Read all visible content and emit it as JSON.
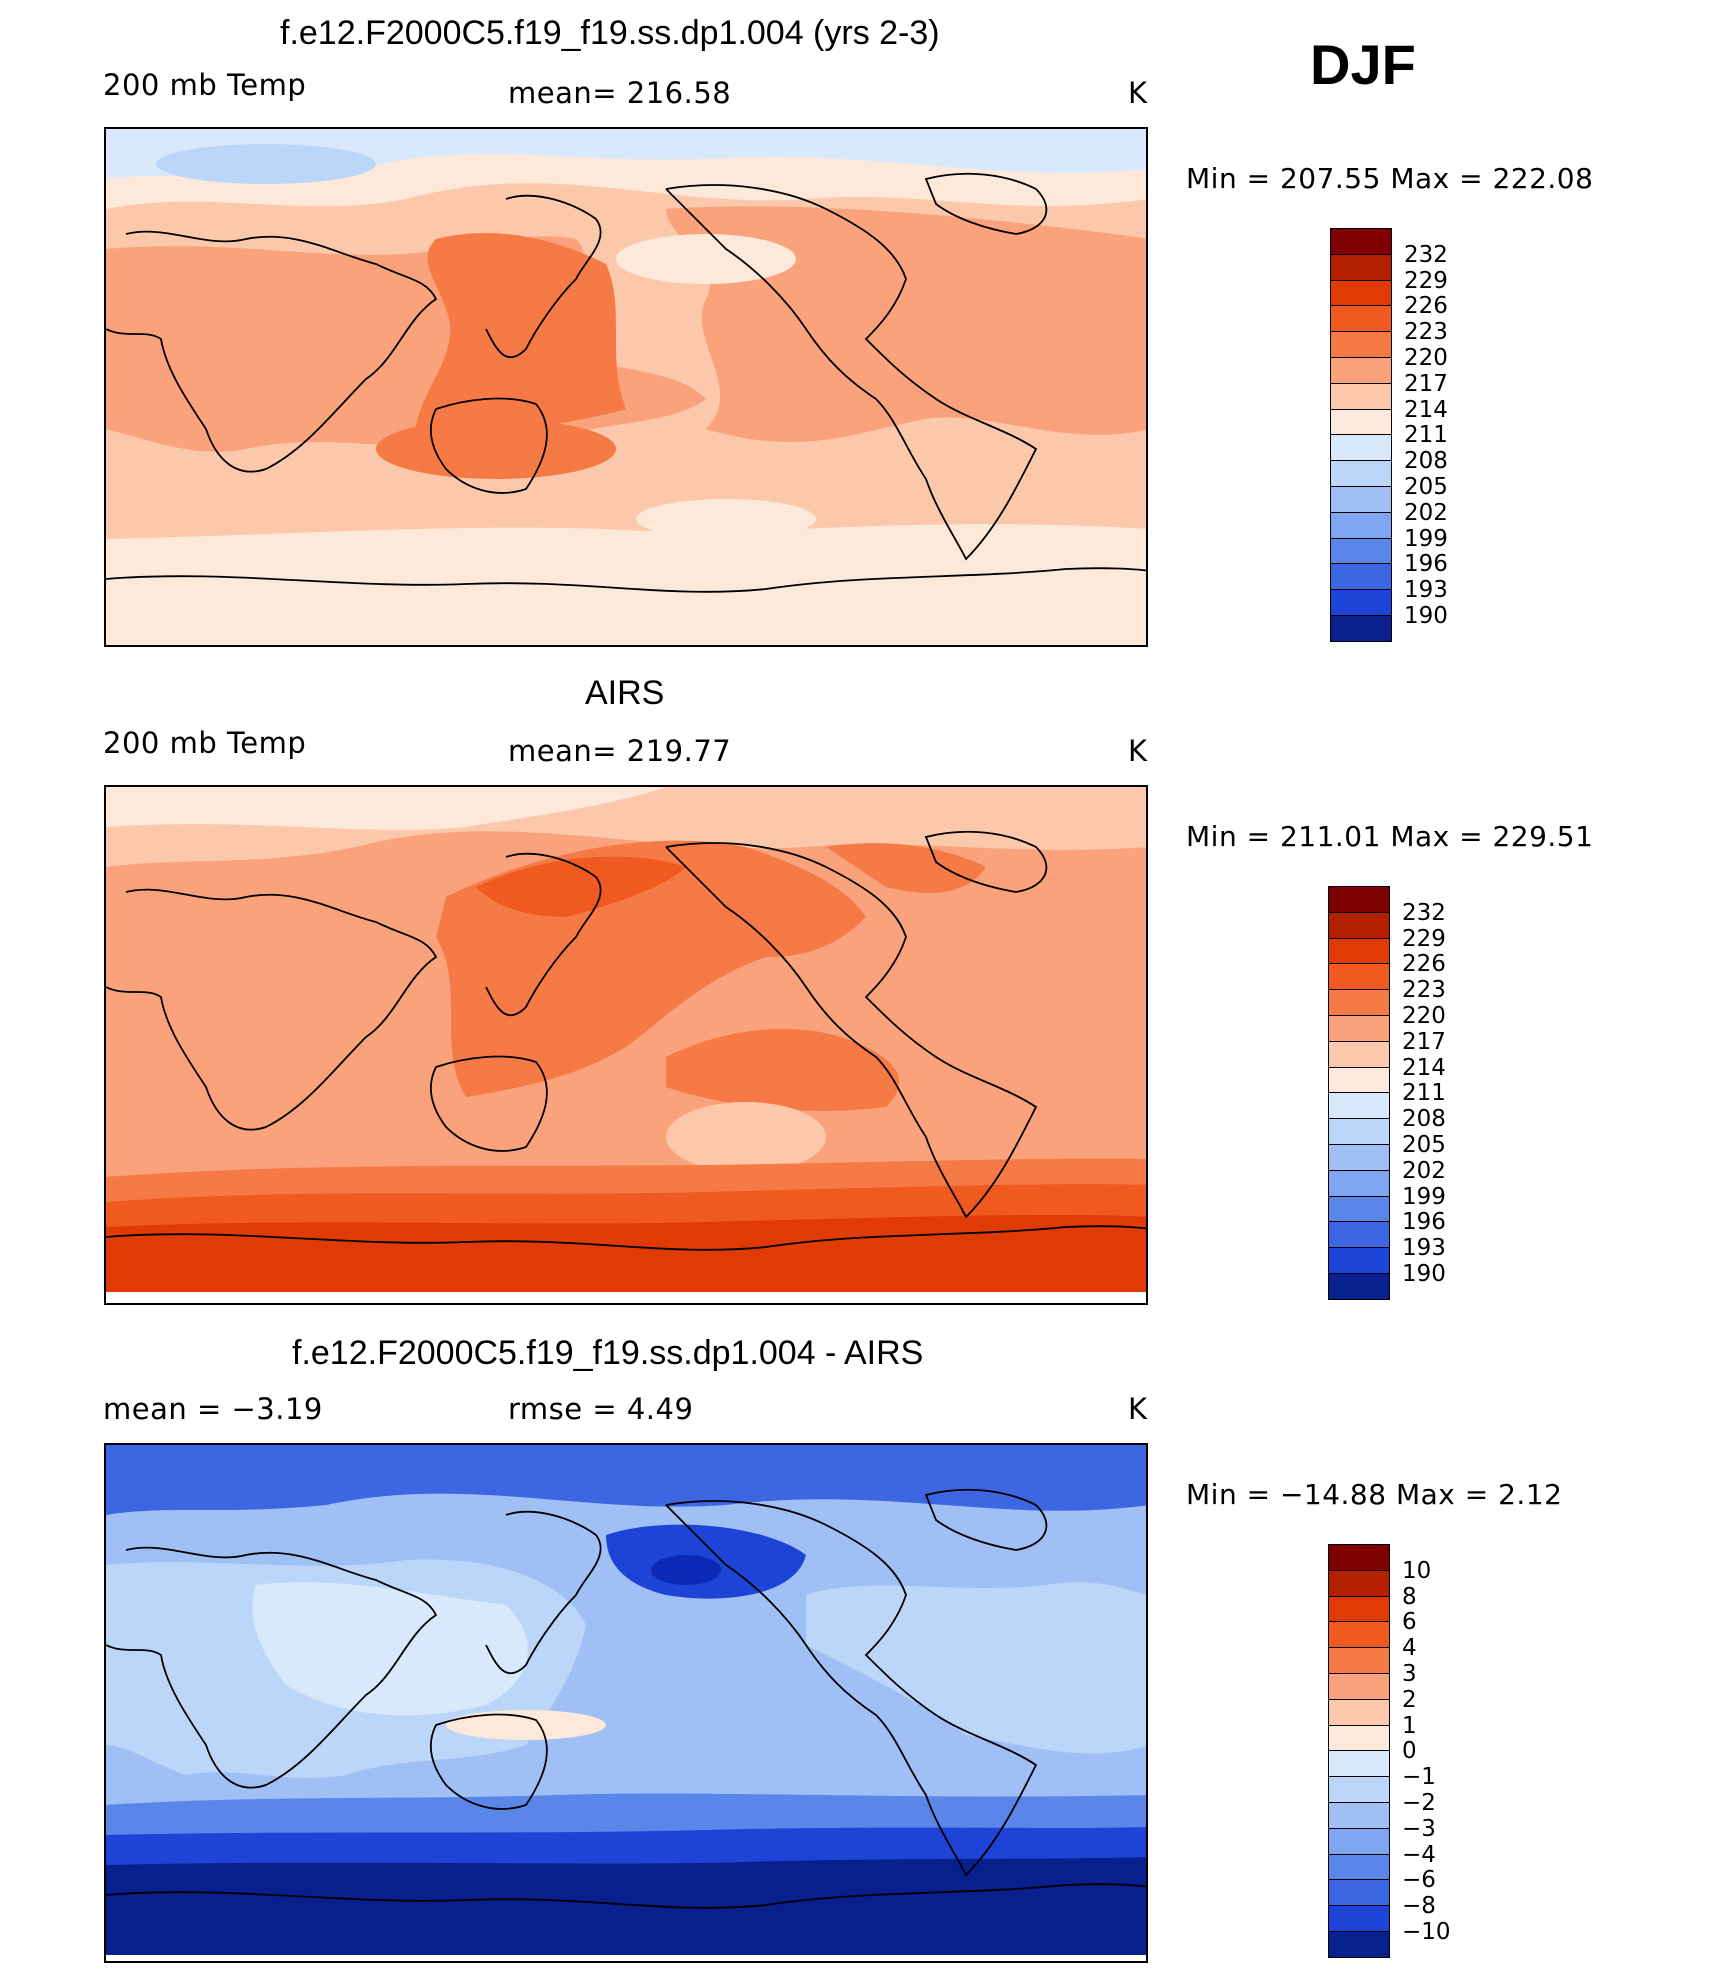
{
  "season": "DJF",
  "units": "K",
  "colors": {
    "red_scale": [
      "#7f0000",
      "#b22000",
      "#e03a05",
      "#f05a20",
      "#f67a45",
      "#f9a27c",
      "#fcc8ab",
      "#fde9d9"
    ],
    "blue_scale": [
      "#d7e9fb",
      "#bcd6fa",
      "#9fbff5",
      "#7fa5f0",
      "#5a86ea",
      "#3d66e3",
      "#1d44d6",
      "#0c2ab5",
      "#07208e"
    ],
    "coast": "#000000"
  },
  "panels": [
    {
      "title": "f.e12.F2000C5.f19_f19.ss.dp1.004 (yrs 2-3)",
      "left_label": "200 mb Temp",
      "center_label": "mean=  216.58",
      "right_label": "K",
      "minmax": "Min  =  207.55  Max  =  222.08"
    },
    {
      "title": "AIRS",
      "left_label": "200 mb Temp",
      "center_label": "mean=  219.77",
      "right_label": "K",
      "minmax": "Min  =  211.01  Max  =  229.51"
    },
    {
      "title": "f.e12.F2000C5.f19_f19.ss.dp1.004 - AIRS",
      "left_label": "mean  =    −3.19",
      "center_label": "rmse  =     4.49",
      "right_label": "K",
      "minmax": "Min  =  −14.88  Max  =     2.12"
    }
  ],
  "chart_data": [
    {
      "type": "heatmap",
      "title": "f.e12.F2000C5.f19_f19.ss.dp1.004 (yrs 2-3)",
      "variable": "200 mb Temp",
      "units": "K",
      "mean": 216.58,
      "min": 207.55,
      "max": 222.08,
      "colorbar_levels": [
        "232",
        "229",
        "226",
        "223",
        "220",
        "217",
        "214",
        "211",
        "208",
        "205",
        "202",
        "199",
        "196",
        "193",
        "190"
      ]
    },
    {
      "type": "heatmap",
      "title": "AIRS",
      "variable": "200 mb Temp",
      "units": "K",
      "mean": 219.77,
      "min": 211.01,
      "max": 229.51,
      "colorbar_levels": [
        "232",
        "229",
        "226",
        "223",
        "220",
        "217",
        "214",
        "211",
        "208",
        "205",
        "202",
        "199",
        "196",
        "193",
        "190"
      ]
    },
    {
      "type": "heatmap",
      "title": "f.e12.F2000C5.f19_f19.ss.dp1.004 - AIRS",
      "units": "K",
      "mean": -3.19,
      "rmse": 4.49,
      "min": -14.88,
      "max": 2.12,
      "colorbar_levels": [
        "10",
        "8",
        "6",
        "4",
        "3",
        "2",
        "1",
        "0",
        "−1",
        "−2",
        "−3",
        "−4",
        "−6",
        "−8",
        "−10"
      ]
    }
  ]
}
